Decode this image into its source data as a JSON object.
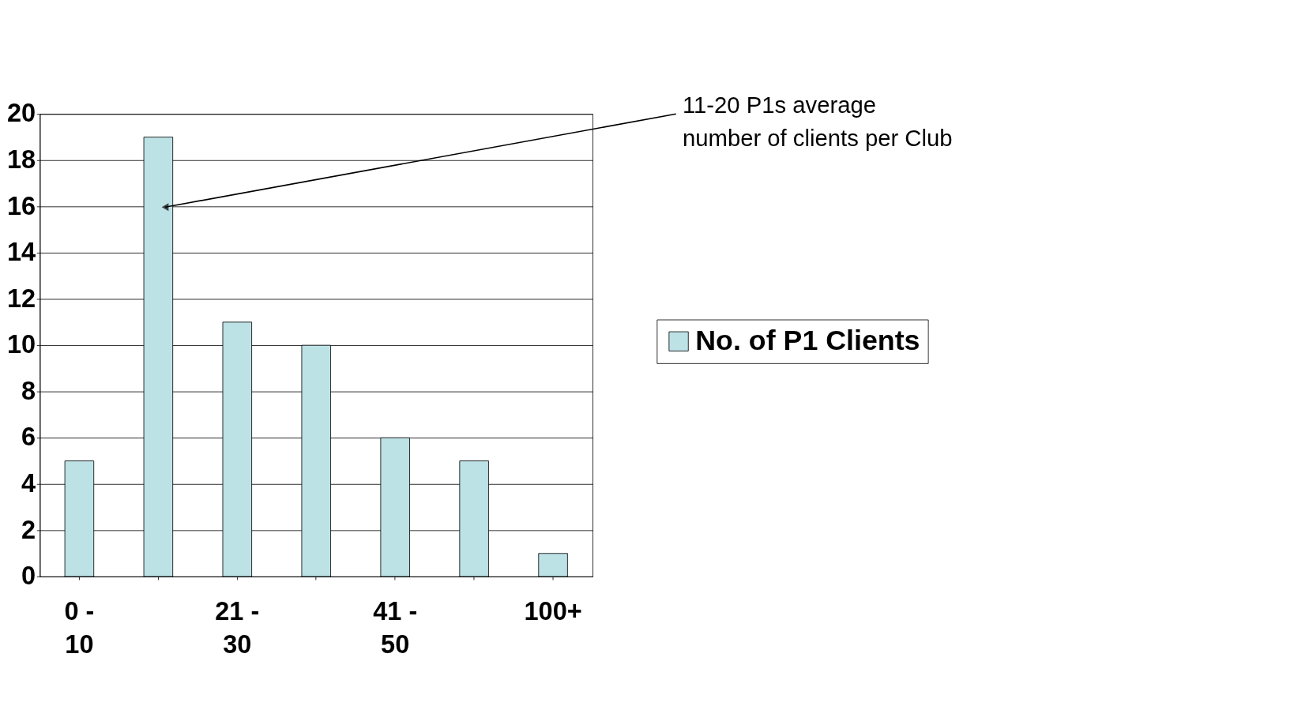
{
  "chart_data": {
    "type": "bar",
    "categories": [
      "0 - 10",
      null,
      "21 - 30",
      null,
      "41 - 50",
      null,
      "100+"
    ],
    "series": [
      {
        "name": "No. of P1 Clients",
        "color": "#bde2e6",
        "values": [
          5,
          19,
          11,
          10,
          6,
          5,
          1
        ]
      }
    ],
    "ylim": [
      0,
      20
    ],
    "yticks": [
      0,
      2,
      4,
      6,
      8,
      10,
      12,
      14,
      16,
      18,
      20
    ],
    "grid": "y",
    "legend": "right",
    "annotations": [
      "11-20 P1s average\nnumber of clients per Club"
    ]
  }
}
